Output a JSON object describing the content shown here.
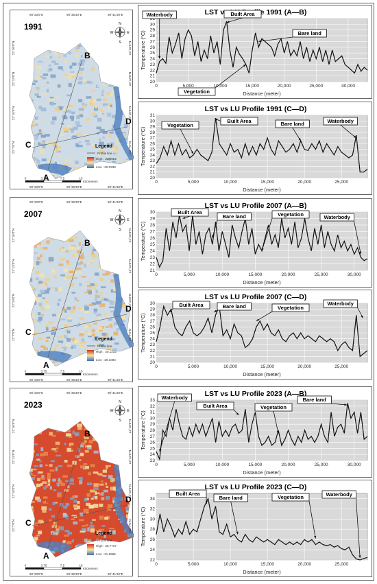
{
  "maps": [
    {
      "year": "1991",
      "legend": {
        "title": "Legend",
        "profile": "Profile line",
        "high": "High : 32.6652",
        "low": "Low : 20.0938"
      },
      "lat": [
        "22°16'0\"N",
        "22°13'0\"N",
        "22°10'0\"N",
        "22°7'0\"N"
      ],
      "lon": [
        "90°33'0\"E",
        "90°36'30\"E",
        "90°41'30\"E"
      ],
      "scale": [
        "0",
        "3.75",
        "7.5",
        "15"
      ],
      "scale_unit": "Kilometers"
    },
    {
      "year": "2007",
      "legend": {
        "title": "Legend",
        "profile": "Profile line",
        "high": "High : 30.1233",
        "low": "Low : 20.1094"
      },
      "lat": [
        "22°16'0\"N",
        "22°13'0\"N",
        "22°10'0\"N",
        "22°7'0\"N"
      ],
      "lon": [
        "90°33'0\"E",
        "90°36'30\"E",
        "90°41'30\"E"
      ],
      "scale": [
        "0",
        "3.75",
        "7.5",
        "15"
      ],
      "scale_unit": "Kilometers"
    },
    {
      "year": "2023",
      "legend": {
        "title": "Legend",
        "profile": "Profile line",
        "high": "High : 35.7737",
        "low": "Low : 21.8965"
      },
      "lat": [
        "22°16'0\"N",
        "22°13'0\"N",
        "22°10'0\"N",
        "22°7'0\"N"
      ],
      "lon": [
        "90°33'0\"E",
        "90°36'30\"E",
        "90°41'30\"E"
      ],
      "scale": [
        "0",
        "3.75",
        "7.5",
        "15"
      ],
      "scale_unit": "Kilometers"
    }
  ],
  "map_points": [
    "A",
    "B",
    "C",
    "D"
  ],
  "compass": {
    "n": "N",
    "s": "S",
    "e": "E",
    "w": "W"
  },
  "chart_data": [
    {
      "type": "line",
      "title": "LST vs LU Profile 1991 (A—B)",
      "xlabel": "Distance (meter)",
      "ylabel": "Temperature (°C)",
      "xlim": [
        0,
        33000
      ],
      "ylim": [
        20,
        31
      ],
      "yticks": [
        20,
        21,
        22,
        23,
        24,
        25,
        26,
        27,
        28,
        29,
        30,
        31
      ],
      "xticks": [
        0,
        5000,
        10000,
        15000,
        20000,
        25000,
        30000
      ],
      "xticklabels": [
        "0",
        "5,000",
        "10,000",
        "15,000",
        "20,000",
        "25,000",
        "30,000"
      ],
      "x": [
        0,
        500,
        1000,
        1500,
        2000,
        2500,
        3000,
        3500,
        4000,
        4500,
        5000,
        5500,
        6000,
        6500,
        7000,
        7500,
        8000,
        8500,
        9000,
        9500,
        10000,
        10500,
        11000,
        11500,
        12000,
        12500,
        13000,
        13500,
        14000,
        14500,
        15000,
        15500,
        16000,
        16500,
        17000,
        17500,
        18000,
        18500,
        19000,
        19500,
        20000,
        20500,
        21000,
        21500,
        22000,
        22500,
        23000,
        23500,
        24000,
        24500,
        25000,
        25500,
        26000,
        26500,
        27000,
        27500,
        28000,
        28500,
        29000,
        29500,
        30000,
        30500,
        31000,
        31500,
        32000,
        32500,
        33000
      ],
      "y": [
        21.5,
        23.5,
        24,
        23.2,
        27.8,
        25,
        26.5,
        28.5,
        24,
        27.5,
        29,
        28,
        24.5,
        27,
        23.5,
        25.5,
        24,
        28,
        25,
        27,
        23,
        29,
        30.5,
        25.5,
        22.5,
        26,
        24.8,
        24,
        23,
        21.5,
        25.5,
        28.5,
        26,
        27.5,
        27,
        26.5,
        26,
        24.5,
        26.5,
        27.5,
        25,
        27,
        24.5,
        25.5,
        24.5,
        27,
        24,
        26,
        23.5,
        25.5,
        24,
        26,
        23.5,
        25.5,
        23,
        25.5,
        23.5,
        24,
        24.5,
        23,
        22.5,
        22,
        21.5,
        23,
        21.8,
        22.5,
        22
      ],
      "annotations": [
        {
          "text": "Waterbody",
          "x": 500,
          "y": 24
        },
        {
          "text": "Built Area",
          "x": 11000,
          "y": 30.3
        },
        {
          "text": "Bare land",
          "x": 16000,
          "y": 27
        },
        {
          "text": "Vegetation",
          "x": 14000,
          "y": 23
        }
      ]
    },
    {
      "type": "line",
      "title": "LST vs LU Profile 1991 (C—D)",
      "xlabel": "Distance (meter)",
      "ylabel": "Temperature (°C)",
      "xlim": [
        0,
        28500
      ],
      "ylim": [
        20,
        31
      ],
      "yticks": [
        20,
        21,
        22,
        23,
        24,
        25,
        26,
        27,
        28,
        29,
        30,
        31
      ],
      "xticks": [
        0,
        5000,
        10000,
        15000,
        20000,
        25000
      ],
      "xticklabels": [
        "0",
        "5,000",
        "10,000",
        "15,000",
        "20,000",
        "25,000"
      ],
      "x": [
        0,
        500,
        1000,
        1500,
        2000,
        2500,
        3000,
        3500,
        4000,
        4500,
        5000,
        5500,
        6000,
        6500,
        7000,
        7500,
        8000,
        8500,
        9000,
        9500,
        10000,
        10500,
        11000,
        11500,
        12000,
        12500,
        13000,
        13500,
        14000,
        14500,
        15000,
        15500,
        16000,
        16500,
        17000,
        17500,
        18000,
        18500,
        19000,
        19500,
        20000,
        20500,
        21000,
        21500,
        22000,
        22500,
        23000,
        23500,
        24000,
        24500,
        25000,
        25500,
        26000,
        26500,
        27000,
        27500,
        28000,
        28500
      ],
      "y": [
        22.5,
        23.5,
        25.5,
        24,
        26.5,
        24,
        26,
        24,
        25,
        23.5,
        24,
        25,
        24,
        23.5,
        23,
        24.5,
        30.5,
        26,
        25,
        24,
        26,
        24.5,
        25,
        23.5,
        26,
        24,
        25.5,
        24,
        26,
        25,
        27,
        25,
        24,
        26.5,
        25.5,
        24.5,
        25,
        26,
        24.5,
        26.5,
        25,
        24.8,
        26,
        25,
        26.5,
        24.5,
        26,
        25,
        24,
        25.5,
        24.5,
        24,
        23.5,
        24,
        27.5,
        21,
        21,
        21.5
      ],
      "annotations": [
        {
          "text": "Vegetation",
          "x": 5000,
          "y": 24.2
        },
        {
          "text": "Built Area",
          "x": 7900,
          "y": 30.4
        },
        {
          "text": "Bare land",
          "x": 19500,
          "y": 26.5
        },
        {
          "text": "Waterbody",
          "x": 27000,
          "y": 27
        }
      ]
    },
    {
      "type": "line",
      "title": "LST vs LU Profile 2007 (A—B)",
      "xlabel": "Distance (meter)",
      "ylabel": "Temperature (°C)",
      "xlim": [
        0,
        32000
      ],
      "ylim": [
        21,
        30
      ],
      "yticks": [
        21,
        22,
        23,
        24,
        25,
        26,
        27,
        28,
        29,
        30
      ],
      "xticks": [
        0,
        5000,
        10000,
        15000,
        20000,
        25000,
        30000
      ],
      "xticklabels": [
        "0",
        "5,000",
        "10,000",
        "15,000",
        "20,000",
        "25,000",
        "30,000"
      ],
      "x": [
        0,
        500,
        1000,
        1500,
        2000,
        2500,
        3000,
        3500,
        4000,
        4500,
        5000,
        5500,
        6000,
        6500,
        7000,
        7500,
        8000,
        8500,
        9000,
        9500,
        10000,
        10500,
        11000,
        11500,
        12000,
        12500,
        13000,
        13500,
        14000,
        14500,
        15000,
        15500,
        16000,
        16500,
        17000,
        17500,
        18000,
        18500,
        19000,
        19500,
        20000,
        20500,
        21000,
        21500,
        22000,
        22500,
        23000,
        23500,
        24000,
        24500,
        25000,
        25500,
        26000,
        26500,
        27000,
        27500,
        28000,
        28500,
        29000,
        29500,
        30000,
        30500,
        31000,
        31500,
        32000
      ],
      "y": [
        23,
        21.5,
        22.5,
        27.5,
        24,
        28.5,
        26,
        29.5,
        27,
        28,
        24,
        29.5,
        25,
        27,
        23.5,
        26.5,
        27.5,
        25,
        28.5,
        24,
        27,
        25,
        23,
        28,
        26,
        24.5,
        27,
        29,
        25,
        27.5,
        23.5,
        25,
        24,
        26,
        28,
        25,
        26.5,
        24.5,
        29,
        26,
        27.5,
        25,
        28.5,
        24.5,
        26,
        29,
        26,
        24,
        27.5,
        25,
        28,
        24.5,
        27,
        25,
        24,
        26.5,
        24.5,
        25.5,
        24,
        25,
        23.5,
        24.5,
        23,
        22.5,
        22.8
      ],
      "annotations": [
        {
          "text": "Built Area",
          "x": 4000,
          "y": 29
        },
        {
          "text": "Bare land",
          "x": 8500,
          "y": 26
        },
        {
          "text": "Vegetation",
          "x": 16000,
          "y": 24
        },
        {
          "text": "Waterbody",
          "x": 31000,
          "y": 23.5
        }
      ]
    },
    {
      "type": "line",
      "title": "LST vs LU Profile 2007 (C—D)",
      "xlabel": "Distance (meter)",
      "ylabel": "Temperature (°C)",
      "xlim": [
        0,
        28500
      ],
      "ylim": [
        20,
        30
      ],
      "yticks": [
        20,
        21,
        22,
        23,
        24,
        25,
        26,
        27,
        28,
        29,
        30
      ],
      "xticks": [
        0,
        5000,
        10000,
        15000,
        20000,
        25000
      ],
      "xticklabels": [
        "0",
        "5,000",
        "10,000",
        "15,000",
        "20,000",
        "25,000"
      ],
      "x": [
        0,
        500,
        1000,
        1500,
        2000,
        2500,
        3000,
        3500,
        4000,
        4500,
        5000,
        5500,
        6000,
        6500,
        7000,
        7500,
        8000,
        8500,
        9000,
        9500,
        10000,
        10500,
        11000,
        11500,
        12000,
        12500,
        13000,
        13500,
        14000,
        14500,
        15000,
        15500,
        16000,
        16500,
        17000,
        17500,
        18000,
        18500,
        19000,
        19500,
        20000,
        20500,
        21000,
        21500,
        22000,
        22500,
        23000,
        23500,
        24000,
        24500,
        25000,
        25500,
        26000,
        26500,
        27000,
        27500,
        28000,
        28500
      ],
      "y": [
        23.5,
        26,
        29.5,
        28,
        29,
        26,
        25,
        24.5,
        26,
        27,
        25,
        24.5,
        25,
        26,
        27.5,
        25,
        28,
        29.5,
        24.5,
        25.5,
        24,
        26.5,
        25,
        24.5,
        22.5,
        23,
        24,
        26,
        27,
        25.5,
        26.5,
        25,
        24.5,
        25.5,
        24,
        23.5,
        24.5,
        25,
        24,
        25,
        24,
        24.5,
        24,
        23.5,
        24.5,
        24,
        23.5,
        24,
        23.5,
        22,
        23,
        23.5,
        22.5,
        22,
        28,
        21,
        21.5,
        22
      ],
      "annotations": [
        {
          "text": "Built Area",
          "x": 1800,
          "y": 28.5
        },
        {
          "text": "Bare land",
          "x": 7800,
          "y": 28.5
        },
        {
          "text": "Vegetation",
          "x": 13500,
          "y": 27
        },
        {
          "text": "Waterbody",
          "x": 27900,
          "y": 27.5
        }
      ]
    },
    {
      "type": "line",
      "title": "LST vs LU Profile 2023 (A—B)",
      "xlabel": "Distance (meter)",
      "ylabel": "Temperature (°C)",
      "xlim": [
        0,
        32000
      ],
      "ylim": [
        23,
        33
      ],
      "yticks": [
        23,
        24,
        25,
        26,
        27,
        28,
        29,
        30,
        31,
        32,
        33
      ],
      "xticks": [
        0,
        5000,
        10000,
        15000,
        20000,
        25000,
        30000
      ],
      "xticklabels": [
        "0",
        "5,000",
        "10,000",
        "15,000",
        "20,000",
        "25,000",
        "30,000"
      ],
      "x": [
        0,
        500,
        1000,
        1500,
        2000,
        2500,
        3000,
        3500,
        4000,
        4500,
        5000,
        5500,
        6000,
        6500,
        7000,
        7500,
        8000,
        8500,
        9000,
        9500,
        10000,
        10500,
        11000,
        11500,
        12000,
        12500,
        13000,
        13500,
        14000,
        14500,
        15000,
        15500,
        16000,
        16500,
        17000,
        17500,
        18000,
        18500,
        19000,
        19500,
        20000,
        20500,
        21000,
        21500,
        22000,
        22500,
        23000,
        23500,
        24000,
        24500,
        25000,
        25500,
        26000,
        26500,
        27000,
        27500,
        28000,
        28500,
        29000,
        29500,
        30000,
        30500,
        31000,
        31500,
        32000
      ],
      "y": [
        24.5,
        23.2,
        28,
        27,
        30,
        28,
        31.5,
        29,
        27,
        26.5,
        28.5,
        27,
        29,
        27.5,
        29,
        27,
        28.5,
        30,
        26,
        29.5,
        27,
        28,
        27,
        28.5,
        29,
        27.5,
        28,
        31.5,
        26,
        29,
        31,
        27,
        25.5,
        26,
        27,
        25.5,
        26,
        28,
        25.5,
        26.5,
        28,
        26.5,
        25.5,
        27,
        26,
        28,
        26.5,
        27,
        26,
        27,
        29,
        27,
        26,
        31,
        27,
        28.5,
        29,
        27.5,
        32.5,
        30,
        31,
        27.5,
        31,
        26.5,
        27
      ],
      "annotations": [
        {
          "text": "Waterbody",
          "x": 500,
          "y": 24.5
        },
        {
          "text": "Built Area",
          "x": 12500,
          "y": 30.5
        },
        {
          "text": "Vegetation",
          "x": 18500,
          "y": 27.5
        },
        {
          "text": "Bare land",
          "x": 28900,
          "y": 32.2
        }
      ]
    },
    {
      "type": "line",
      "title": "LST vs LU Profile 2023 (C—D)",
      "xlabel": "Distance (meter)",
      "ylabel": "Temperature (°C)",
      "xlim": [
        0,
        28500
      ],
      "ylim": [
        22,
        35
      ],
      "yticks": [
        22,
        24,
        26,
        28,
        30,
        32,
        34
      ],
      "xticks": [
        0,
        5000,
        10000,
        15000,
        20000,
        25000
      ],
      "xticklabels": [
        "0",
        "5,000",
        "10,000",
        "15,000",
        "20,000",
        "25,000"
      ],
      "x": [
        0,
        500,
        1000,
        1500,
        2000,
        2500,
        3000,
        3500,
        4000,
        4500,
        5000,
        5500,
        6000,
        6500,
        7000,
        7500,
        8000,
        8500,
        9000,
        9500,
        10000,
        10500,
        11000,
        11500,
        12000,
        12500,
        13000,
        13500,
        14000,
        14500,
        15000,
        15500,
        16000,
        16500,
        17000,
        17500,
        18000,
        18500,
        19000,
        19500,
        20000,
        20500,
        21000,
        21500,
        22000,
        22500,
        23000,
        23500,
        24000,
        24500,
        25000,
        25500,
        26000,
        26500,
        27000,
        27500,
        28000,
        28500
      ],
      "y": [
        27,
        31,
        27.5,
        30,
        28.5,
        26.5,
        28,
        27,
        29.5,
        27,
        28,
        27.5,
        30,
        32.5,
        34,
        30,
        32.5,
        27.5,
        27,
        29,
        26.5,
        27,
        26,
        25.5,
        27,
        26,
        25.5,
        26.5,
        26,
        25.5,
        26,
        25.5,
        25,
        26,
        25.5,
        25,
        25.5,
        25,
        25.5,
        25,
        26,
        25.5,
        26,
        25,
        25.5,
        25,
        24.8,
        25,
        24.5,
        24.8,
        24.2,
        24,
        24.5,
        23,
        22.2,
        22,
        22.3,
        22.5
      ],
      "annotations": [
        {
          "text": "Built Area",
          "x": 6800,
          "y": 33
        },
        {
          "text": "Bare land",
          "x": 11000,
          "y": 27
        },
        {
          "text": "Vegetation",
          "x": 21500,
          "y": 26.2
        },
        {
          "text": "Waterbody",
          "x": 27500,
          "y": 22.4
        }
      ]
    }
  ]
}
